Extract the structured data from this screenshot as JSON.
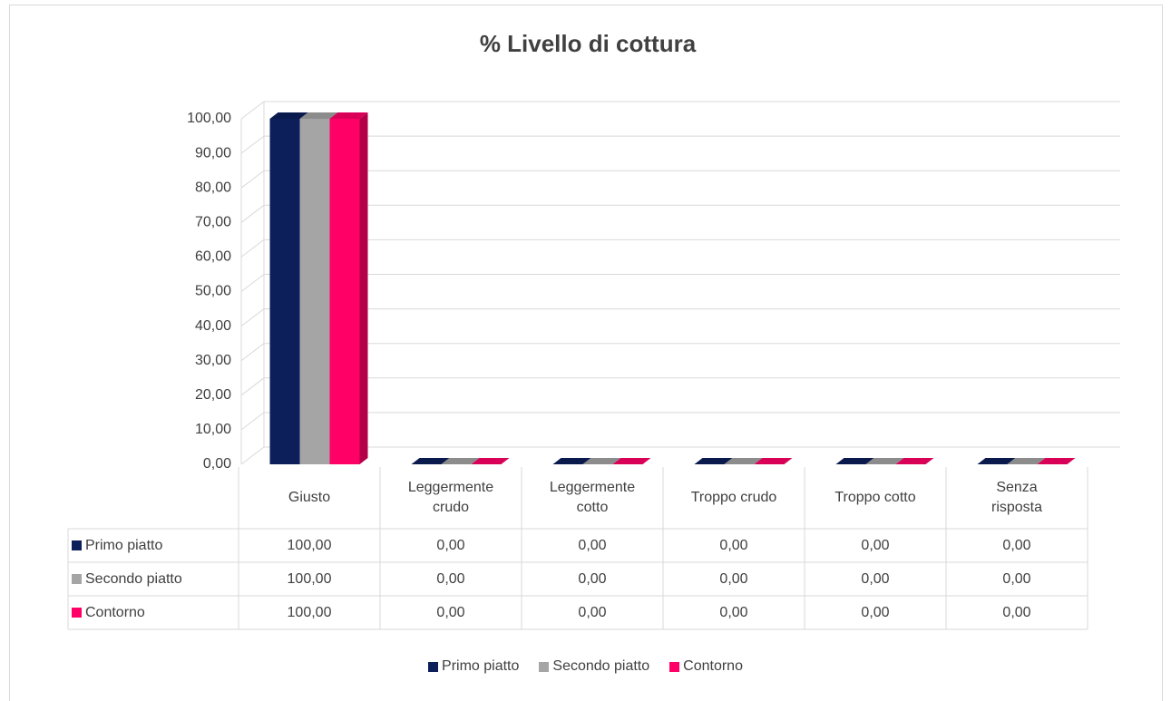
{
  "chart_data": {
    "type": "bar3d",
    "title": "% Livello di cottura",
    "categories": [
      "Giusto",
      "Leggermente crudo",
      "Leggermente cotto",
      "Troppo crudo",
      "Troppo cotto",
      "Senza risposta"
    ],
    "series": [
      {
        "name": "Primo piatto",
        "color": "#0c1f5a",
        "values": [
          100,
          0,
          0,
          0,
          0,
          0
        ],
        "value_labels": [
          "100,00",
          "0,00",
          "0,00",
          "0,00",
          "0,00",
          "0,00"
        ]
      },
      {
        "name": "Secondo piatto",
        "color": "#a5a5a5",
        "values": [
          100,
          0,
          0,
          0,
          0,
          0
        ],
        "value_labels": [
          "100,00",
          "0,00",
          "0,00",
          "0,00",
          "0,00",
          "0,00"
        ]
      },
      {
        "name": "Contorno",
        "color": "#ff0066",
        "values": [
          100,
          0,
          0,
          0,
          0,
          0
        ],
        "value_labels": [
          "100,00",
          "0,00",
          "0,00",
          "0,00",
          "0,00",
          "0,00"
        ]
      }
    ],
    "ylim": [
      0,
      100
    ],
    "yticks": [
      {
        "value": 0,
        "label": "0,00"
      },
      {
        "value": 10,
        "label": "10,00"
      },
      {
        "value": 20,
        "label": "20,00"
      },
      {
        "value": 30,
        "label": "30,00"
      },
      {
        "value": 40,
        "label": "40,00"
      },
      {
        "value": 50,
        "label": "50,00"
      },
      {
        "value": 60,
        "label": "60,00"
      },
      {
        "value": 70,
        "label": "70,00"
      },
      {
        "value": 80,
        "label": "80,00"
      },
      {
        "value": 90,
        "label": "90,00"
      },
      {
        "value": 100,
        "label": "100,00"
      }
    ],
    "grid": true,
    "legend": "bottom"
  }
}
